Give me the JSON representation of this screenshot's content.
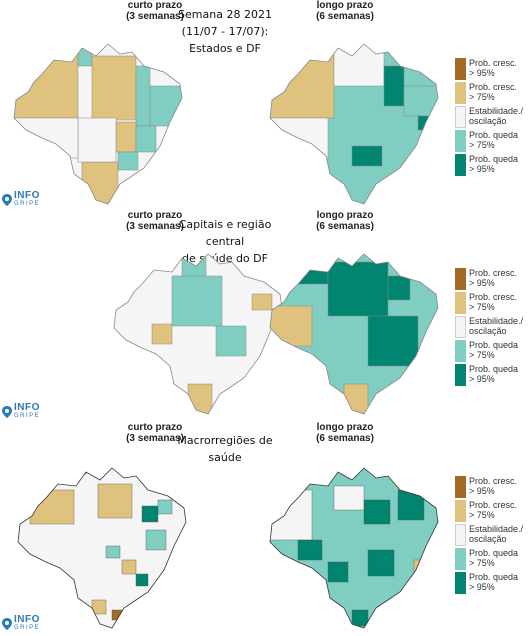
{
  "colors": {
    "prob_cresc_95": "#a26a26",
    "prob_cresc_75": "#dfc27d",
    "estabilidade": "#f5f5f5",
    "prob_queda_75": "#80cdc1",
    "prob_queda_95": "#018571",
    "border": "#888888"
  },
  "panels": [
    {
      "left_label": {
        "title": "curto prazo",
        "sub": "(3 semanas)"
      },
      "right_label": {
        "title": "longo prazo",
        "sub": "(6 semanas)"
      },
      "title_lines": [
        "Semana 28 2021",
        "(11/07 - 17/07):",
        "Estados e DF"
      ]
    },
    {
      "left_label": {
        "title": "curto prazo",
        "sub": "(3 semanas)"
      },
      "right_label": {
        "title": "longo prazo",
        "sub": "(6 semanas)"
      },
      "title_lines": [
        "Capitais e região central",
        "de saúde do DF"
      ]
    },
    {
      "left_label": {
        "title": "curto prazo",
        "sub": "(3 semanas)"
      },
      "right_label": {
        "title": "longo prazo",
        "sub": "(6 semanas)"
      },
      "title_lines": [
        "Macrorregiões de saúde"
      ]
    }
  ],
  "legend": [
    {
      "line1": "Prob. cresc.",
      "line2": "> 95%",
      "color_key": "prob_cresc_95"
    },
    {
      "line1": "Prob. cresc.",
      "line2": "> 75%",
      "color_key": "prob_cresc_75"
    },
    {
      "line1": "Estabilidade./",
      "line2": "oscilação",
      "color_key": "estabilidade"
    },
    {
      "line1": "Prob. queda",
      "line2": "> 75%",
      "color_key": "prob_queda_75"
    },
    {
      "line1": "Prob. queda",
      "line2": "> 95%",
      "color_key": "prob_queda_95"
    }
  ],
  "logo": {
    "main": "INFO",
    "sub": "GRIPE"
  }
}
